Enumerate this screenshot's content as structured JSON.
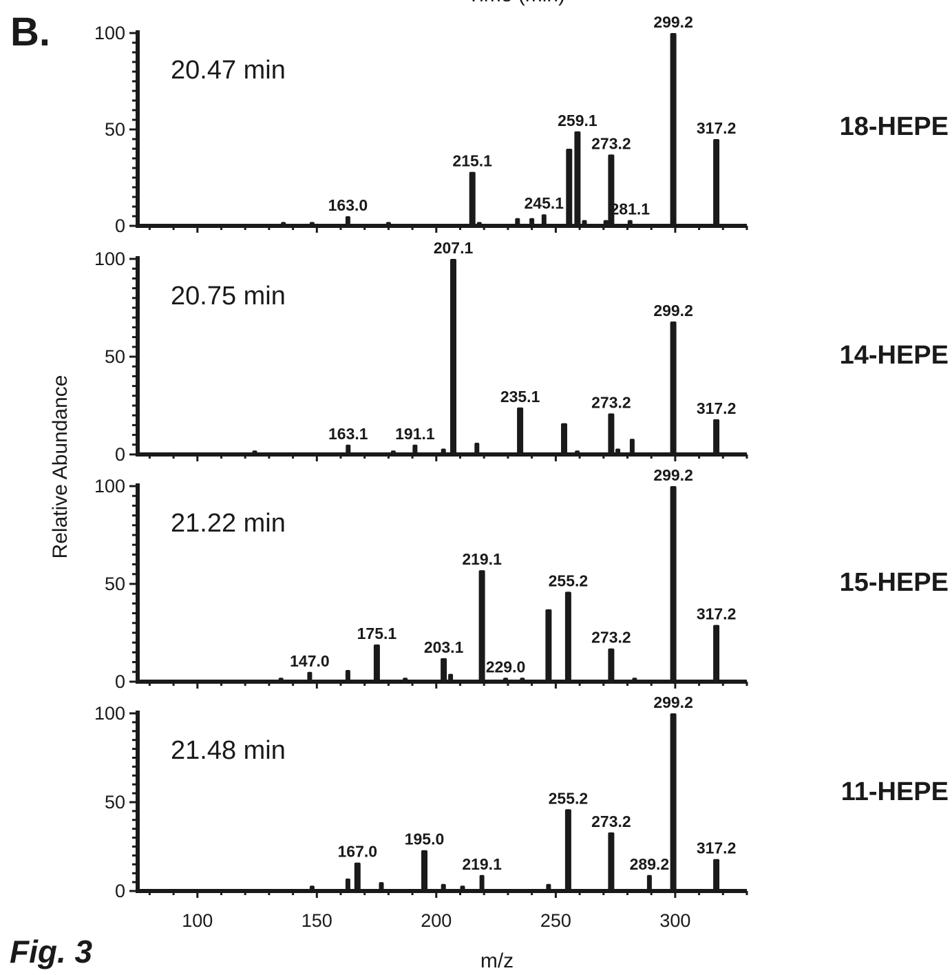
{
  "figure": {
    "panel_letter": "B.",
    "fig_label": "Fig. 3",
    "top_cut_text": "Time (min)"
  },
  "chart_data": {
    "type": "bar",
    "xlabel": "m/z",
    "ylabel": "Relative Abundance",
    "xlim": [
      75,
      330
    ],
    "ylim": [
      0,
      100
    ],
    "xticks": [
      100,
      150,
      200,
      250,
      300
    ],
    "yticks": [
      0,
      50,
      100
    ],
    "panels": [
      {
        "time": "20.47 min",
        "compound": "18-HEPE",
        "peaks": [
          {
            "mz": 163.0,
            "y": 5,
            "label": "163.0"
          },
          {
            "mz": 215.1,
            "y": 28,
            "label": "215.1"
          },
          {
            "mz": 245.1,
            "y": 6,
            "label": "245.1"
          },
          {
            "mz": 255.6,
            "y": 40,
            "label": ""
          },
          {
            "mz": 259.1,
            "y": 49,
            "label": "259.1"
          },
          {
            "mz": 273.2,
            "y": 37,
            "label": "273.2"
          },
          {
            "mz": 281.1,
            "y": 3,
            "label": "281.1"
          },
          {
            "mz": 299.2,
            "y": 100,
            "label": "299.2"
          },
          {
            "mz": 317.2,
            "y": 45,
            "label": "317.2"
          },
          {
            "mz": 234,
            "y": 4,
            "label": ""
          },
          {
            "mz": 240,
            "y": 4,
            "label": ""
          },
          {
            "mz": 136,
            "y": 2,
            "label": ""
          },
          {
            "mz": 148,
            "y": 2,
            "label": ""
          },
          {
            "mz": 180,
            "y": 2,
            "label": ""
          },
          {
            "mz": 218,
            "y": 2,
            "label": ""
          },
          {
            "mz": 262,
            "y": 3,
            "label": ""
          },
          {
            "mz": 271,
            "y": 3,
            "label": ""
          }
        ]
      },
      {
        "time": "20.75 min",
        "compound": "14-HEPE",
        "peaks": [
          {
            "mz": 163.1,
            "y": 5,
            "label": "163.1"
          },
          {
            "mz": 191.1,
            "y": 5,
            "label": "191.1"
          },
          {
            "mz": 207.1,
            "y": 100,
            "label": "207.1"
          },
          {
            "mz": 235.1,
            "y": 24,
            "label": "235.1"
          },
          {
            "mz": 253.5,
            "y": 16,
            "label": ""
          },
          {
            "mz": 273.2,
            "y": 21,
            "label": "273.2"
          },
          {
            "mz": 282,
            "y": 8,
            "label": ""
          },
          {
            "mz": 299.2,
            "y": 68,
            "label": "299.2"
          },
          {
            "mz": 317.2,
            "y": 18,
            "label": "317.2"
          },
          {
            "mz": 217,
            "y": 6,
            "label": ""
          },
          {
            "mz": 124,
            "y": 2,
            "label": ""
          },
          {
            "mz": 182,
            "y": 2,
            "label": ""
          },
          {
            "mz": 203,
            "y": 3,
            "label": ""
          },
          {
            "mz": 259,
            "y": 2,
            "label": ""
          },
          {
            "mz": 276,
            "y": 3,
            "label": ""
          }
        ]
      },
      {
        "time": "21.22 min",
        "compound": "15-HEPE",
        "peaks": [
          {
            "mz": 147.0,
            "y": 5,
            "label": "147.0"
          },
          {
            "mz": 163,
            "y": 6,
            "label": ""
          },
          {
            "mz": 175.1,
            "y": 19,
            "label": "175.1"
          },
          {
            "mz": 203.1,
            "y": 12,
            "label": "203.1"
          },
          {
            "mz": 219.1,
            "y": 57,
            "label": "219.1"
          },
          {
            "mz": 229.0,
            "y": 2,
            "label": "229.0"
          },
          {
            "mz": 247,
            "y": 37,
            "label": ""
          },
          {
            "mz": 255.2,
            "y": 46,
            "label": "255.2"
          },
          {
            "mz": 273.2,
            "y": 17,
            "label": "273.2"
          },
          {
            "mz": 299.2,
            "y": 100,
            "label": "299.2"
          },
          {
            "mz": 317.2,
            "y": 29,
            "label": "317.2"
          },
          {
            "mz": 135,
            "y": 2,
            "label": ""
          },
          {
            "mz": 187,
            "y": 2,
            "label": ""
          },
          {
            "mz": 206,
            "y": 4,
            "label": ""
          },
          {
            "mz": 236,
            "y": 2,
            "label": ""
          },
          {
            "mz": 283,
            "y": 2,
            "label": ""
          }
        ]
      },
      {
        "time": "21.48 min",
        "compound": "11-HEPE",
        "peaks": [
          {
            "mz": 163,
            "y": 7,
            "label": ""
          },
          {
            "mz": 167.0,
            "y": 16,
            "label": "167.0"
          },
          {
            "mz": 177,
            "y": 5,
            "label": ""
          },
          {
            "mz": 195.0,
            "y": 23,
            "label": "195.0"
          },
          {
            "mz": 219.1,
            "y": 9,
            "label": "219.1"
          },
          {
            "mz": 255.2,
            "y": 46,
            "label": "255.2"
          },
          {
            "mz": 273.2,
            "y": 33,
            "label": "273.2"
          },
          {
            "mz": 289.2,
            "y": 9,
            "label": "289.2"
          },
          {
            "mz": 299.2,
            "y": 100,
            "label": "299.2"
          },
          {
            "mz": 317.2,
            "y": 18,
            "label": "317.2"
          },
          {
            "mz": 148,
            "y": 3,
            "label": ""
          },
          {
            "mz": 203,
            "y": 4,
            "label": ""
          },
          {
            "mz": 211,
            "y": 3,
            "label": ""
          },
          {
            "mz": 247,
            "y": 4,
            "label": ""
          }
        ]
      }
    ]
  }
}
